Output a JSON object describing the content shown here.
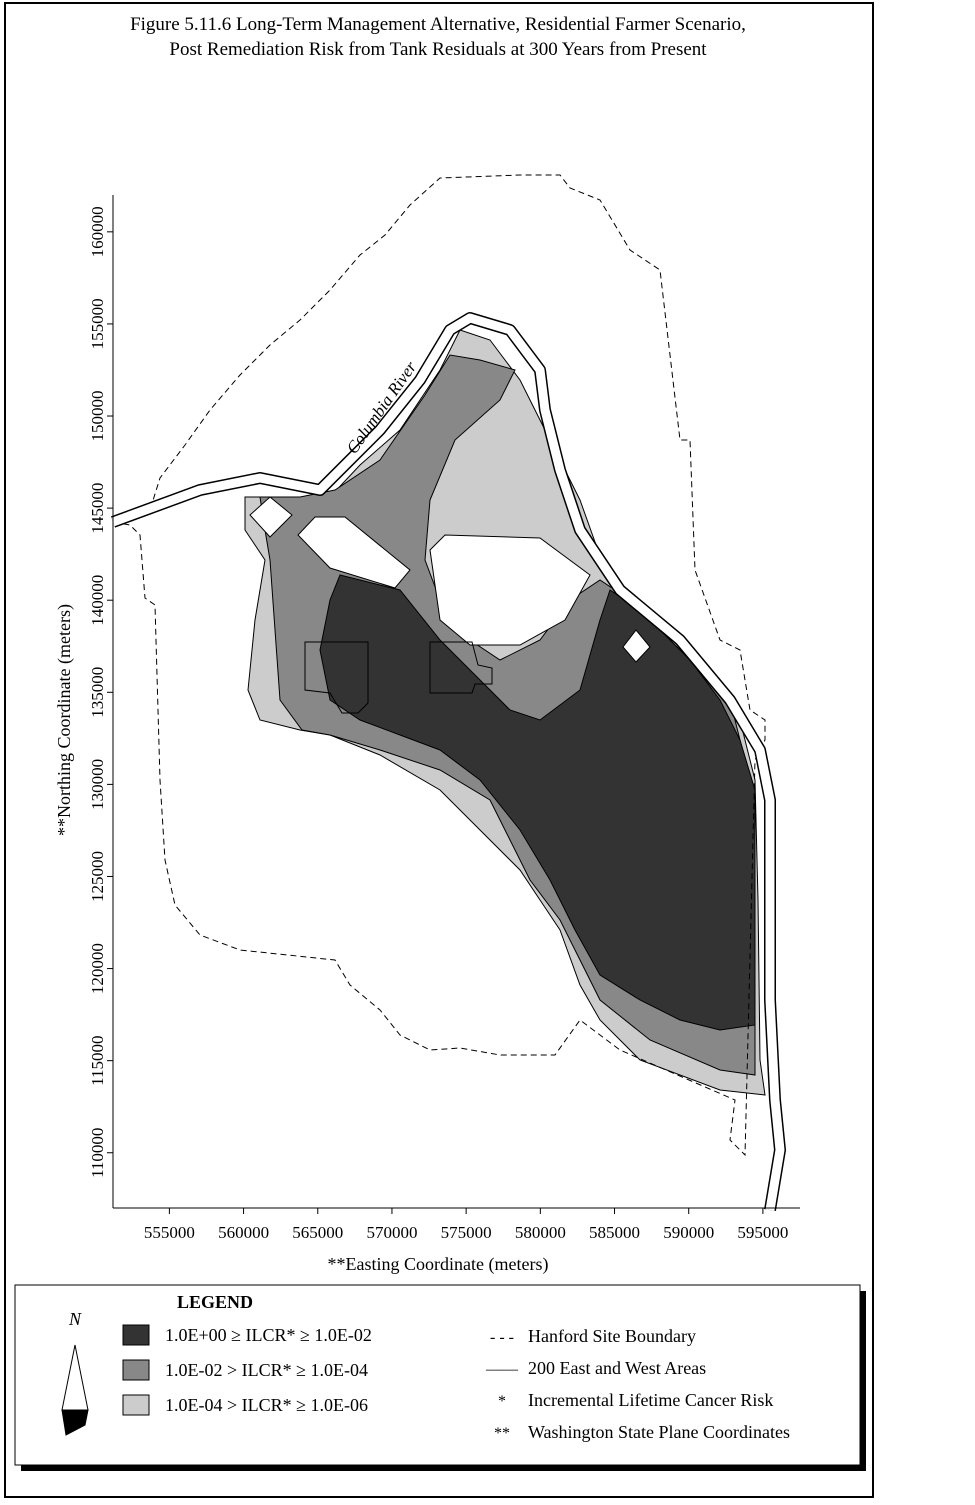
{
  "map": {
    "title": [
      "Figure 5.11.6  Long-Term Management Alternative, Residential Farmer Scenario,",
      "Post Remediation Risk from Tank Residuals at 300 Years from Present"
    ],
    "river_label": "Columbia River",
    "xaxis": {
      "label": "**Easting Coordinate (meters)",
      "lim": [
        551200,
        597500
      ],
      "ticks": [
        555000,
        560000,
        565000,
        570000,
        575000,
        580000,
        585000,
        590000,
        595000
      ]
    },
    "yaxis": {
      "label": "**Northing Coordinate (meters)",
      "lim": [
        107000,
        162000
      ],
      "ticks": [
        110000,
        115000,
        120000,
        125000,
        130000,
        135000,
        140000,
        145000,
        150000,
        155000,
        160000
      ]
    },
    "legend": {
      "title": "LEGEND",
      "north": "N",
      "fills": [
        {
          "label": "1.0E+00 ≥ ILCR* ≥ 1.0E-02",
          "color": "#333333"
        },
        {
          "label": "1.0E-02 > ILCR* ≥ 1.0E-04",
          "color": "#888888"
        },
        {
          "label": "1.0E-04 > ILCR* ≥ 1.0E-06",
          "color": "#cccccc"
        }
      ],
      "notes": [
        {
          "symbol": "- - -",
          "label": "Hanford Site Boundary"
        },
        {
          "symbol": "——",
          "label": "200 East and West Areas"
        },
        {
          "symbol": "*",
          "label": "Incremental Lifetime Cancer Risk"
        },
        {
          "symbol": "**",
          "label": "Washington State Plane Coordinates"
        }
      ]
    }
  }
}
